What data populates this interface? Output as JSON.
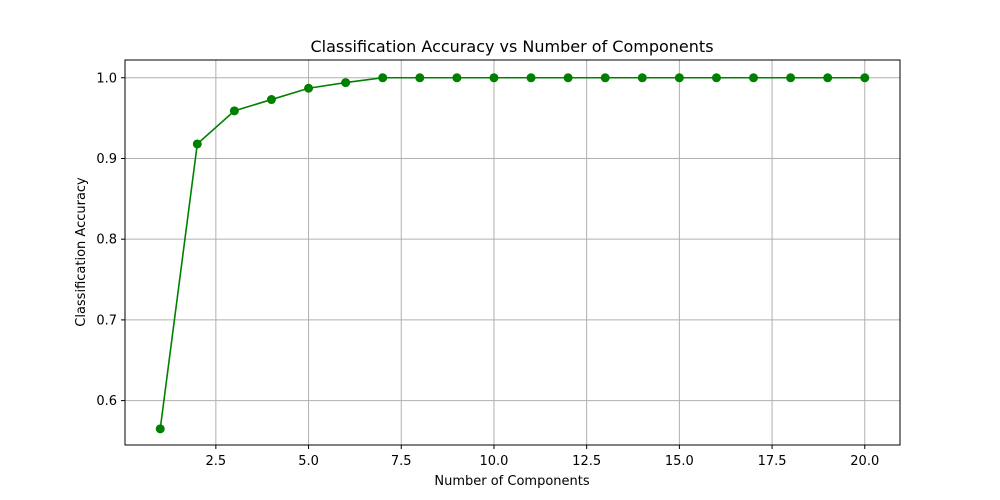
{
  "chart_data": {
    "type": "line",
    "title": "Classification Accuracy vs Number of Components",
    "xlabel": "Number of Components",
    "ylabel": "Classification Accuracy",
    "xlim": [
      0.05,
      20.95
    ],
    "ylim": [
      0.545,
      1.022
    ],
    "xticks": [
      2.5,
      5.0,
      7.5,
      10.0,
      12.5,
      15.0,
      17.5,
      20.0
    ],
    "xtick_labels": [
      "2.5",
      "5.0",
      "7.5",
      "10.0",
      "12.5",
      "15.0",
      "17.5",
      "20.0"
    ],
    "yticks": [
      0.6,
      0.7,
      0.8,
      0.9,
      1.0
    ],
    "ytick_labels": [
      "0.6",
      "0.7",
      "0.8",
      "0.9",
      "1.0"
    ],
    "grid": true,
    "series": [
      {
        "color": "#008000",
        "marker": "circle",
        "x": [
          1,
          2,
          3,
          4,
          5,
          6,
          7,
          8,
          9,
          10,
          11,
          12,
          13,
          14,
          15,
          16,
          17,
          18,
          19,
          20
        ],
        "y": [
          0.565,
          0.918,
          0.959,
          0.973,
          0.987,
          0.994,
          1.0,
          1.0,
          1.0,
          1.0,
          1.0,
          1.0,
          1.0,
          1.0,
          1.0,
          1.0,
          1.0,
          1.0,
          1.0,
          1.0
        ]
      }
    ]
  }
}
